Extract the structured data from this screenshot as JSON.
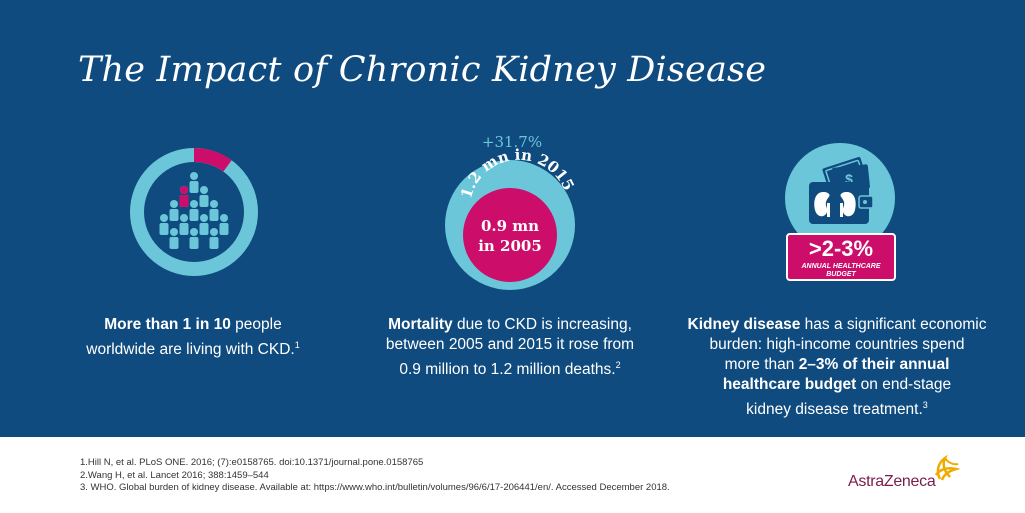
{
  "title": "The Impact of Chronic Kidney Disease",
  "colors": {
    "background": "#104b7f",
    "light_blue": "#6cc6d9",
    "magenta": "#cc0e6a",
    "logo": "#7b1c4d",
    "logo_accent": "#f0ab00"
  },
  "stat1": {
    "share_highlighted": 0.1,
    "text_bold": "More than 1 in 10",
    "text_rest": " people",
    "text_line2": "worldwide are living with CKD.",
    "ref": "1"
  },
  "stat2": {
    "increase": "+31.7%",
    "arc_label": "1.2 mn in 2015",
    "inner_line1": "0.9 mn",
    "inner_line2": "in 2005",
    "text_bold": "Mortality",
    "text_rest": " due to CKD is increasing,",
    "text_line2": "between 2005 and 2015 it rose from",
    "text_line3": "0.9 million to 1.2 million deaths.",
    "ref": "2"
  },
  "stat3": {
    "badge_value": ">2-3%",
    "badge_line1": "ANNUAL HEALTHCARE",
    "badge_line2": "BUDGET",
    "text_bold1": "Kidney disease",
    "text_rest1": " has a significant economic",
    "text_line2": "burden: high-income countries spend",
    "text_line3_plain": "more than ",
    "text_line3_bold": "2–3% of their annual",
    "text_line4_bold": "healthcare budget",
    "text_line4_rest": " on end-stage",
    "text_line5": "kidney disease treatment.",
    "ref": "3"
  },
  "references": [
    "1.Hill N, et al. PLoS ONE. 2016; (7):e0158765. doi:10.1371/journal.pone.0158765",
    "2.Wang H, et al. Lancet 2016; 388:1459–544",
    "3. WHO. Global burden of kidney disease. Available at: https://www.who.int/bulletin/volumes/96/6/17-206441/en/. Accessed December 2018."
  ],
  "logo": "AstraZeneca"
}
